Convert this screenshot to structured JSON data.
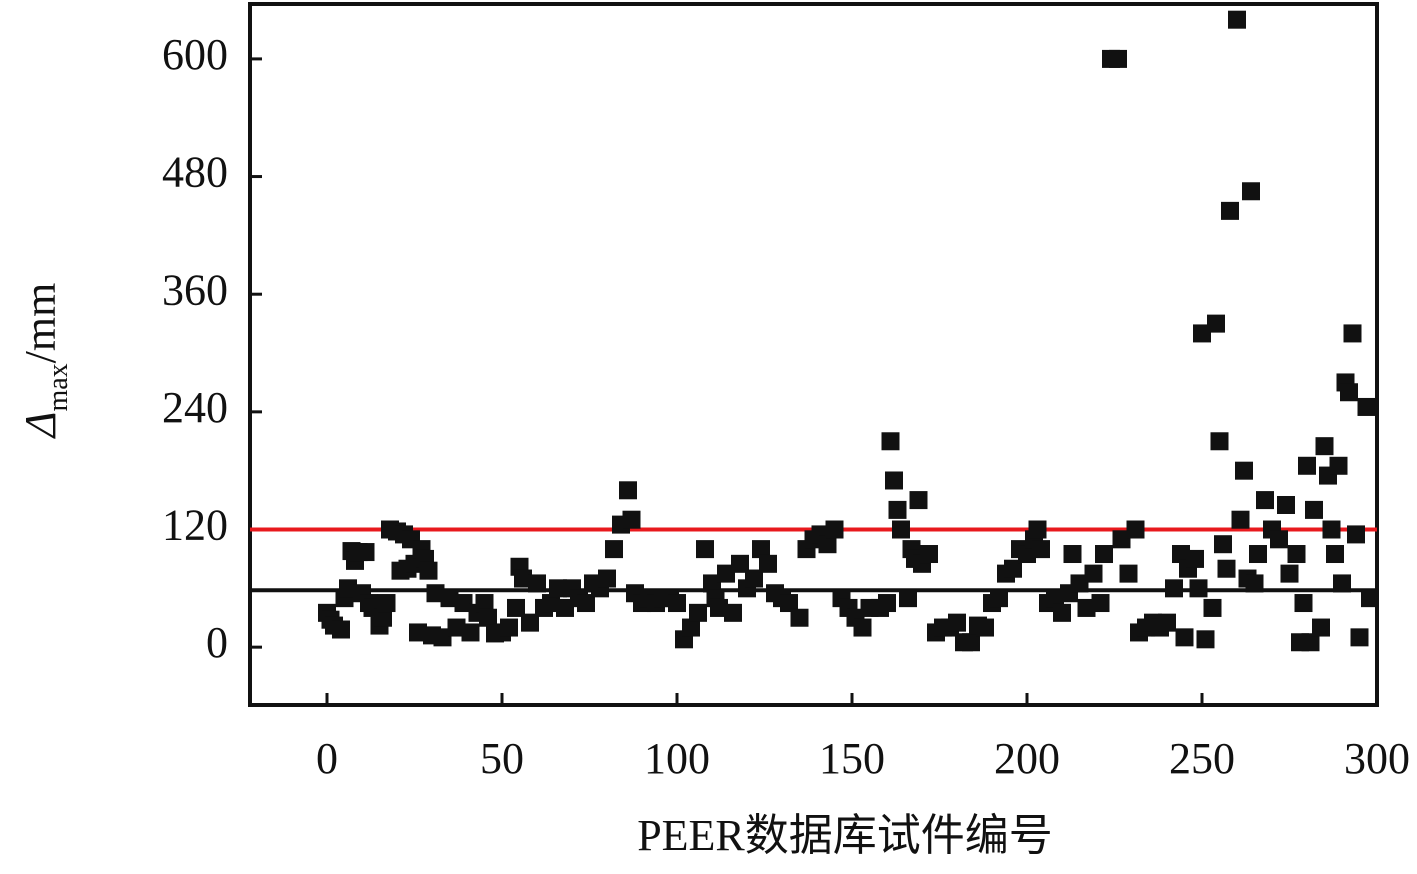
{
  "chart_data": {
    "type": "scatter",
    "xlabel": "PEER数据库试件编号",
    "ylabel": {
      "symbol": "Δ",
      "subscript": "max",
      "unit": "/mm"
    },
    "xlim": [
      -22,
      300
    ],
    "ylim": [
      -59,
      656
    ],
    "xticks": [
      0,
      50,
      100,
      150,
      200,
      250,
      300
    ],
    "yticks": [
      0,
      120,
      240,
      360,
      480,
      600
    ],
    "color": "#111111",
    "hlines": [
      {
        "value": 120,
        "color": "#e8191d"
      },
      {
        "value": 58,
        "color": "#111111"
      }
    ],
    "x": [
      0,
      1,
      2,
      4,
      5,
      6,
      7,
      8,
      9,
      10,
      11,
      12,
      13,
      15,
      16,
      17,
      18,
      20,
      21,
      22,
      23,
      24,
      25,
      26,
      27,
      28,
      29,
      30,
      31,
      33,
      35,
      37,
      39,
      41,
      43,
      45,
      46,
      48,
      50,
      52,
      54,
      55,
      56,
      58,
      60,
      62,
      64,
      66,
      68,
      70,
      72,
      74,
      76,
      78,
      80,
      82,
      84,
      86,
      87,
      88,
      90,
      92,
      94,
      96,
      98,
      100,
      102,
      104,
      106,
      108,
      110,
      111,
      112,
      114,
      116,
      118,
      120,
      122,
      124,
      126,
      128,
      130,
      132,
      135,
      137,
      139,
      141,
      143,
      145,
      147,
      149,
      151,
      153,
      155,
      158,
      160,
      161,
      162,
      163,
      164,
      166,
      167,
      168,
      169,
      170,
      172,
      174,
      176,
      178,
      180,
      182,
      184,
      186,
      188,
      190,
      192,
      194,
      196,
      198,
      200,
      202,
      203,
      204,
      206,
      208,
      210,
      212,
      213,
      215,
      217,
      219,
      221,
      222,
      224,
      226,
      227,
      229,
      231,
      232,
      234,
      236,
      238,
      240,
      242,
      244,
      245,
      246,
      248,
      249,
      250,
      251,
      253,
      254,
      255,
      256,
      257,
      258,
      260,
      261,
      262,
      263,
      264,
      265,
      266,
      268,
      270,
      272,
      274,
      275,
      277,
      278,
      279,
      280,
      281,
      282,
      284,
      285,
      286,
      287,
      288,
      289,
      290,
      291,
      292,
      293,
      294,
      295,
      297,
      298
    ],
    "y": [
      35,
      28,
      22,
      18,
      50,
      60,
      98,
      88,
      97,
      55,
      97,
      45,
      40,
      22,
      30,
      45,
      120,
      118,
      78,
      115,
      80,
      110,
      85,
      15,
      100,
      90,
      78,
      12,
      55,
      10,
      50,
      20,
      45,
      15,
      35,
      45,
      30,
      14,
      15,
      20,
      40,
      82,
      70,
      25,
      65,
      40,
      45,
      60,
      40,
      60,
      50,
      45,
      65,
      60,
      70,
      100,
      125,
      160,
      130,
      55,
      45,
      50,
      45,
      50,
      50,
      45,
      8,
      20,
      35,
      100,
      65,
      50,
      40,
      75,
      35,
      85,
      60,
      70,
      100,
      85,
      55,
      50,
      45,
      30,
      100,
      110,
      115,
      105,
      120,
      50,
      40,
      30,
      20,
      40,
      40,
      45,
      210,
      170,
      140,
      120,
      50,
      100,
      90,
      150,
      85,
      95,
      15,
      20,
      20,
      25,
      5,
      5,
      22,
      20,
      45,
      50,
      75,
      80,
      100,
      95,
      110,
      120,
      100,
      45,
      50,
      35,
      55,
      95,
      65,
      40,
      75,
      45,
      95,
      600,
      600,
      110,
      75,
      120,
      15,
      20,
      25,
      20,
      25,
      60,
      95,
      10,
      80,
      90,
      60,
      320,
      8,
      40,
      330,
      210,
      105,
      80,
      445,
      640,
      130,
      180,
      70,
      465,
      65,
      95,
      150,
      120,
      110,
      145,
      75,
      95,
      5,
      45,
      185,
      5,
      140,
      20,
      205,
      175,
      120,
      95,
      185,
      65,
      270,
      260,
      320,
      115,
      10,
      245,
      50
    ]
  }
}
